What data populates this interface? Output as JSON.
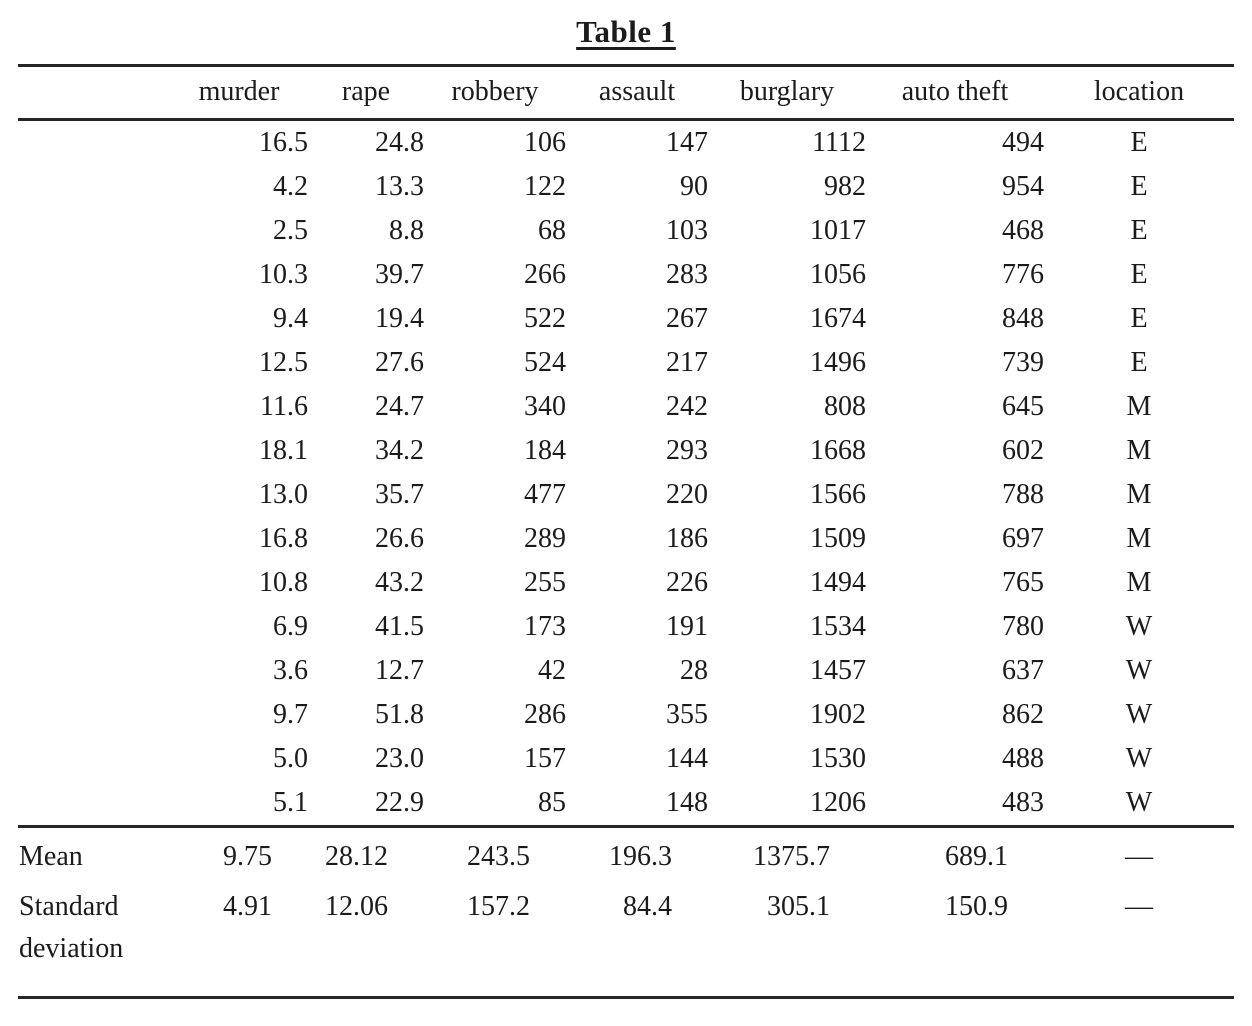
{
  "title": "Table 1",
  "table": {
    "columns": [
      "murder",
      "rape",
      "robbery",
      "assault",
      "burglary",
      "auto theft",
      "location"
    ],
    "rows": [
      [
        "16.5",
        "24.8",
        "106",
        "147",
        "1112",
        "494",
        "E"
      ],
      [
        "4.2",
        "13.3",
        "122",
        "90",
        "982",
        "954",
        "E"
      ],
      [
        "2.5",
        "8.8",
        "68",
        "103",
        "1017",
        "468",
        "E"
      ],
      [
        "10.3",
        "39.7",
        "266",
        "283",
        "1056",
        "776",
        "E"
      ],
      [
        "9.4",
        "19.4",
        "522",
        "267",
        "1674",
        "848",
        "E"
      ],
      [
        "12.5",
        "27.6",
        "524",
        "217",
        "1496",
        "739",
        "E"
      ],
      [
        "11.6",
        "24.7",
        "340",
        "242",
        "808",
        "645",
        "M"
      ],
      [
        "18.1",
        "34.2",
        "184",
        "293",
        "1668",
        "602",
        "M"
      ],
      [
        "13.0",
        "35.7",
        "477",
        "220",
        "1566",
        "788",
        "M"
      ],
      [
        "16.8",
        "26.6",
        "289",
        "186",
        "1509",
        "697",
        "M"
      ],
      [
        "10.8",
        "43.2",
        "255",
        "226",
        "1494",
        "765",
        "M"
      ],
      [
        "6.9",
        "41.5",
        "173",
        "191",
        "1534",
        "780",
        "W"
      ],
      [
        "3.6",
        "12.7",
        "42",
        "28",
        "1457",
        "637",
        "W"
      ],
      [
        "9.7",
        "51.8",
        "286",
        "355",
        "1902",
        "862",
        "W"
      ],
      [
        "5.0",
        "23.0",
        "157",
        "144",
        "1530",
        "488",
        "W"
      ],
      [
        "5.1",
        "22.9",
        "85",
        "148",
        "1206",
        "483",
        "W"
      ]
    ],
    "summary_rows": [
      {
        "label": "Mean",
        "values": [
          "9.75",
          "28.12",
          "243.5",
          "196.3",
          "1375.7",
          "689.1",
          "—"
        ]
      },
      {
        "label": "Standard deviation",
        "values": [
          "4.91",
          "12.06",
          "157.2",
          "84.4",
          "305.1",
          "150.9",
          "—"
        ]
      }
    ]
  }
}
